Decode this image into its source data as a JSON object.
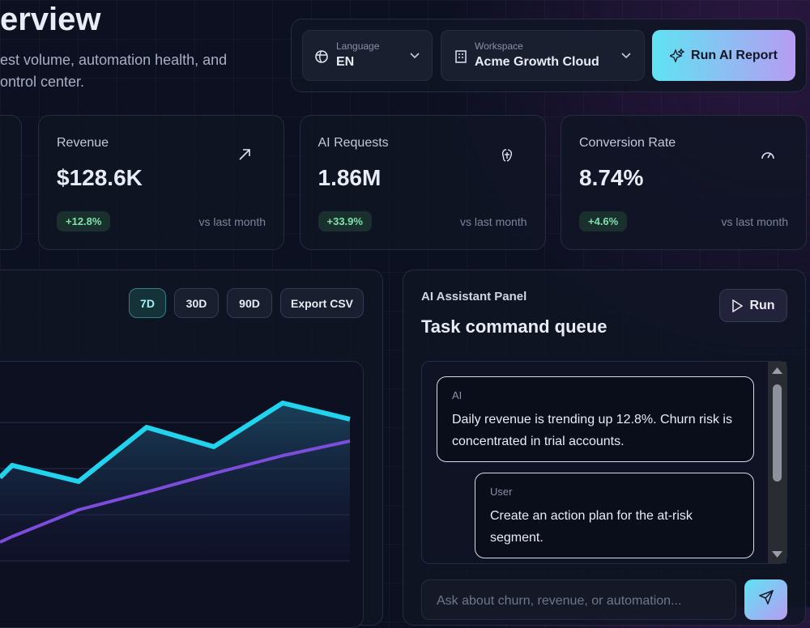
{
  "header": {
    "title": "erview",
    "subtitle_lines": [
      "est volume, automation health, and",
      "ontrol center."
    ]
  },
  "controls": {
    "language": {
      "label": "Language",
      "value": "EN"
    },
    "workspace": {
      "label": "Workspace",
      "value": "Acme Growth Cloud"
    },
    "run_report": "Run AI Report"
  },
  "kpis": [
    {
      "label": "Revenue",
      "value": "$128.6K",
      "change": "+12.8%",
      "note": "vs last month"
    },
    {
      "label": "AI Requests",
      "value": "1.86M",
      "change": "+33.9%",
      "note": "vs last month"
    },
    {
      "label": "Conversion Rate",
      "value": "8.74%",
      "change": "+4.6%",
      "note": "vs last month"
    }
  ],
  "chart_panel": {
    "ranges": [
      "7D",
      "30D",
      "90D"
    ],
    "export": "Export CSV"
  },
  "assistant": {
    "kicker": "AI Assistant Panel",
    "title": "Task command queue",
    "run": "Run",
    "messages": [
      {
        "role": "AI",
        "text": "Daily revenue is trending up 12.8%. Churn risk is concentrated in trial accounts."
      },
      {
        "role": "User",
        "text": "Create an action plan for the at-risk segment."
      }
    ],
    "input_placeholder": "Ask about churn, revenue, or automation..."
  }
}
